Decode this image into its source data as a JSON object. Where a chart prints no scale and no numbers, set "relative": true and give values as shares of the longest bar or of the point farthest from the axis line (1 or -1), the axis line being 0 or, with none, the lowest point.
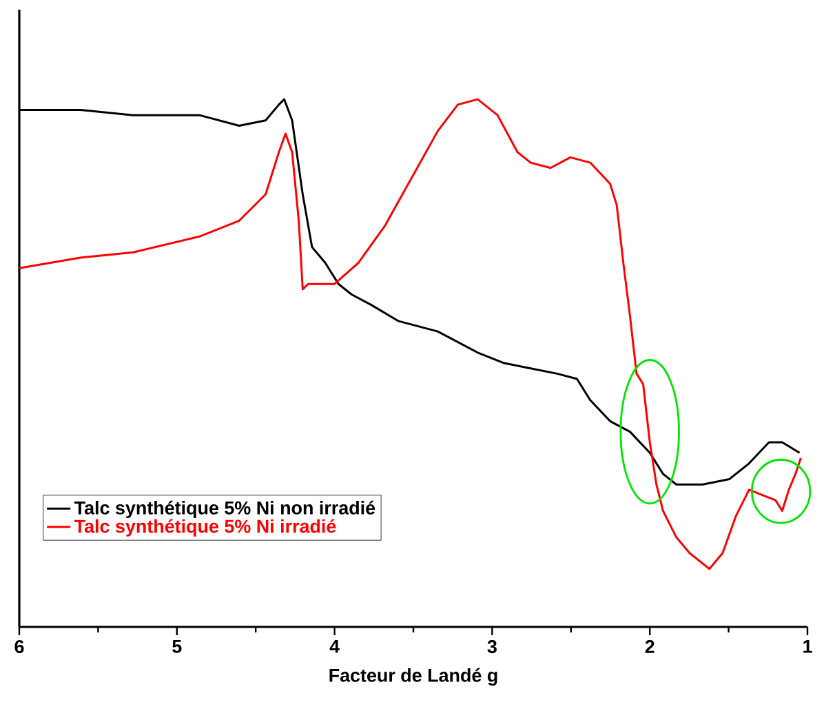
{
  "chart_data": {
    "type": "line",
    "xlabel": "Facteur de Landé g",
    "relative": true,
    "xlim": [
      6,
      1
    ],
    "xticks": [
      6,
      5,
      4,
      3,
      2,
      1
    ],
    "legend": "bottom left",
    "grid": false,
    "marker": "none",
    "line_style": "solid",
    "series": [
      {
        "name": "Talc synthétique 5% Ni non irradié",
        "color": "#000000",
        "x": [
          6.0,
          5.613,
          5.277,
          4.857,
          4.605,
          4.437,
          4.353,
          4.319,
          4.269,
          4.202,
          4.143,
          4.059,
          3.975,
          3.891,
          3.765,
          3.597,
          3.345,
          3.092,
          2.924,
          2.756,
          2.588,
          2.462,
          2.378,
          2.252,
          2.126,
          2.0,
          1.916,
          1.832,
          1.664,
          1.496,
          1.37,
          1.244,
          1.16,
          1.05
        ],
        "values": [
          0.98,
          0.98,
          0.97,
          0.97,
          0.95,
          0.96,
          0.99,
          1.0,
          0.96,
          0.82,
          0.72,
          0.69,
          0.65,
          0.63,
          0.61,
          0.58,
          0.56,
          0.52,
          0.5,
          0.49,
          0.48,
          0.47,
          0.43,
          0.39,
          0.37,
          0.33,
          0.29,
          0.27,
          0.27,
          0.28,
          0.31,
          0.35,
          0.35,
          0.33
        ]
      },
      {
        "name": "Talc synthétique 5% Ni irradié",
        "color": "#ff0000",
        "x": [
          6.0,
          5.613,
          5.277,
          4.857,
          4.605,
          4.437,
          4.353,
          4.311,
          4.269,
          4.227,
          4.202,
          4.168,
          4.101,
          4.0,
          3.849,
          3.681,
          3.513,
          3.345,
          3.218,
          3.092,
          2.966,
          2.84,
          2.756,
          2.63,
          2.504,
          2.378,
          2.252,
          2.21,
          2.168,
          2.126,
          2.084,
          2.042,
          2.0,
          1.958,
          1.916,
          1.832,
          1.748,
          1.622,
          1.538,
          1.454,
          1.37,
          1.286,
          1.202,
          1.16,
          1.118,
          1.076,
          1.042
        ],
        "values": [
          0.68,
          0.7,
          0.71,
          0.74,
          0.77,
          0.82,
          0.9,
          0.935,
          0.9,
          0.77,
          0.64,
          0.65,
          0.65,
          0.65,
          0.69,
          0.76,
          0.85,
          0.94,
          0.99,
          1.0,
          0.97,
          0.9,
          0.88,
          0.87,
          0.89,
          0.88,
          0.84,
          0.8,
          0.69,
          0.59,
          0.48,
          0.46,
          0.35,
          0.27,
          0.22,
          0.17,
          0.14,
          0.11,
          0.14,
          0.21,
          0.26,
          0.25,
          0.24,
          0.22,
          0.26,
          0.29,
          0.32
        ]
      }
    ]
  }
}
